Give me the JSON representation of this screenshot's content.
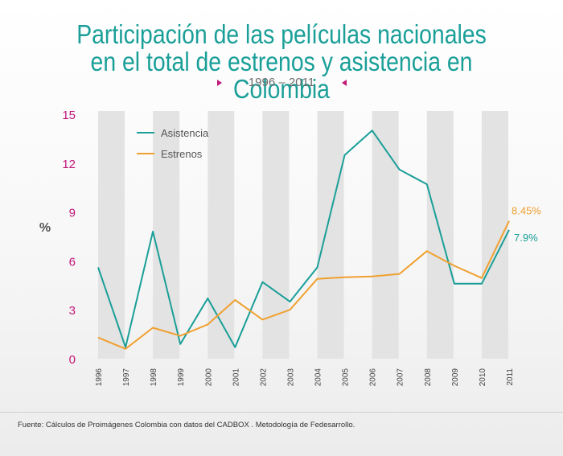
{
  "title_line1": "Participación de las películas nacionales",
  "title_line2": "en el total de estrenos y asistencia en Colombia",
  "period": "1996 – 2011",
  "source": "Fuente: Cálculos de Proimágenes Colombia con datos del CADBOX . Metodología de Fedesarrollo.",
  "colors": {
    "title": "#1a9f98",
    "asistencia": "#1a9f98",
    "estrenos": "#f0a030",
    "yticks": "#c2187a",
    "band": "#e3e3e3"
  },
  "chart_data": {
    "type": "line",
    "title": "Participación de las películas nacionales en el total de estrenos y asistencia en Colombia",
    "subtitle": "1996 – 2011",
    "ylabel": "%",
    "xlabel": "",
    "ylim": [
      0,
      15
    ],
    "yticks": [
      "0",
      "3",
      "6",
      "9",
      "12",
      "15"
    ],
    "grid": "alternating vertical bands",
    "legend": "top-left",
    "x": [
      "1996",
      "1997",
      "1998",
      "1999",
      "2000",
      "2001",
      "2002",
      "2003",
      "2004",
      "2005",
      "2006",
      "2007",
      "2008",
      "2009",
      "2010",
      "2011"
    ],
    "series": [
      {
        "name": "Asistencia",
        "color": "#1a9f98",
        "values": [
          5.6,
          0.7,
          7.8,
          0.9,
          3.7,
          0.7,
          4.7,
          3.5,
          5.6,
          12.5,
          14.0,
          11.6,
          10.7,
          4.6,
          4.6,
          7.9
        ],
        "end_label": "7.9%"
      },
      {
        "name": "Estrenos",
        "color": "#f0a030",
        "values": [
          1.3,
          0.6,
          1.9,
          1.4,
          2.1,
          3.6,
          2.4,
          3.0,
          4.9,
          5.0,
          5.05,
          5.2,
          6.6,
          5.7,
          4.95,
          8.45
        ],
        "end_label": "8.45%"
      }
    ]
  }
}
